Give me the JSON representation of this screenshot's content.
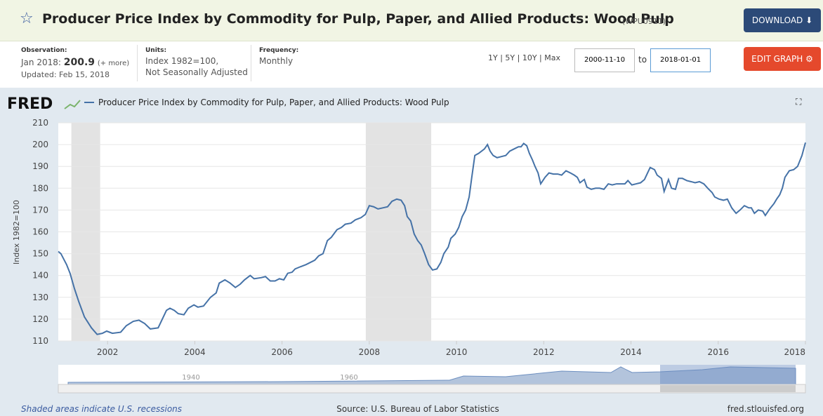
{
  "header": {
    "title": "Producer Price Index by Commodity for Pulp, Paper, and Allied Products: Wood Pulp",
    "code": "(WPU0911)",
    "download": "DOWNLOAD"
  },
  "info": {
    "observation_label": "Observation:",
    "observation": "Jan 2018:",
    "observation_value": "200.9",
    "more": "(+ more)",
    "updated": "Updated: Feb 15, 2018",
    "units_label": "Units:",
    "units": "Index 1982=100,",
    "units2": "Not Seasonally Adjusted",
    "frequency_label": "Frequency:",
    "frequency": "Monthly"
  },
  "controls": {
    "ranges": "1Y | 5Y | 10Y | Max",
    "start": "2000-11-10",
    "to": "to",
    "end": "2018-01-01",
    "edit": "EDIT GRAPH"
  },
  "chart_data": {
    "type": "line",
    "logo": "FRED",
    "ylabel": "Index 1982=100",
    "grid": true,
    "xlim": [
      2000.87,
      2018.0
    ],
    "xticks": [
      2002,
      2004,
      2006,
      2008,
      2010,
      2012,
      2014,
      2016,
      2018
    ],
    "ylim": [
      110,
      210
    ],
    "yticks": [
      110,
      120,
      130,
      140,
      150,
      160,
      170,
      180,
      190,
      200,
      210
    ],
    "recessions": [
      [
        2001.17,
        2001.83
      ],
      [
        2007.92,
        2009.42
      ]
    ],
    "x": [
      2000.87,
      2000.93,
      2001.06,
      2001.14,
      2001.24,
      2001.34,
      2001.47,
      2001.63,
      2001.76,
      2001.88,
      2001.98,
      2002.11,
      2002.3,
      2002.43,
      2002.59,
      2002.72,
      2002.85,
      2002.98,
      2003.16,
      2003.35,
      2003.43,
      2003.53,
      2003.62,
      2003.75,
      2003.85,
      2003.98,
      2004.07,
      2004.2,
      2004.36,
      2004.49,
      2004.56,
      2004.69,
      2004.81,
      2004.93,
      2005.04,
      2005.14,
      2005.27,
      2005.36,
      2005.52,
      2005.62,
      2005.73,
      2005.84,
      2005.94,
      2006.04,
      2006.13,
      2006.23,
      2006.3,
      2006.42,
      2006.55,
      2006.75,
      2006.84,
      2006.94,
      2007.04,
      2007.13,
      2007.26,
      2007.36,
      2007.45,
      2007.58,
      2007.68,
      2007.81,
      2007.91,
      2008.0,
      2008.1,
      2008.2,
      2008.31,
      2008.42,
      2008.52,
      2008.63,
      2008.73,
      2008.81,
      2008.87,
      2008.95,
      2009.03,
      2009.11,
      2009.19,
      2009.27,
      2009.36,
      2009.45,
      2009.55,
      2009.64,
      2009.71,
      2009.81,
      2009.87,
      2009.97,
      2010.05,
      2010.13,
      2010.21,
      2010.29,
      2010.35,
      2010.42,
      2010.51,
      2010.64,
      2010.71,
      2010.77,
      2010.84,
      2010.93,
      2011.03,
      2011.13,
      2011.22,
      2011.32,
      2011.42,
      2011.48,
      2011.54,
      2011.61,
      2011.67,
      2011.74,
      2011.8,
      2011.87,
      2011.93,
      2012.03,
      2012.12,
      2012.22,
      2012.32,
      2012.41,
      2012.51,
      2012.61,
      2012.7,
      2012.77,
      2012.83,
      2012.93,
      2012.99,
      2013.09,
      2013.19,
      2013.28,
      2013.38,
      2013.48,
      2013.57,
      2013.67,
      2013.77,
      2013.86,
      2013.93,
      2014.02,
      2014.12,
      2014.22,
      2014.31,
      2014.38,
      2014.44,
      2014.54,
      2014.6,
      2014.7,
      2014.76,
      2014.86,
      2014.93,
      2015.02,
      2015.09,
      2015.18,
      2015.28,
      2015.38,
      2015.47,
      2015.57,
      2015.67,
      2015.76,
      2015.86,
      2015.92,
      2016.02,
      2016.12,
      2016.21,
      2016.31,
      2016.41,
      2016.5,
      2016.6,
      2016.7,
      2016.76,
      2016.83,
      2016.92,
      2017.02,
      2017.08,
      2017.18,
      2017.28,
      2017.34,
      2017.41,
      2017.47,
      2017.53,
      2017.63,
      2017.73,
      2017.82,
      2017.92,
      2018.0
    ],
    "series": [
      {
        "name": "Producer Price Index by Commodity for Pulp, Paper, and Allied Products: Wood Pulp",
        "color": "#4572a7",
        "values": [
          151,
          150,
          145,
          141,
          134,
          128,
          121,
          116,
          113,
          113.5,
          114.5,
          113.5,
          114,
          117,
          119,
          119.5,
          118,
          115.5,
          116,
          124,
          125,
          124,
          122.5,
          122,
          125,
          126.5,
          125.5,
          126,
          130,
          132,
          136.5,
          138,
          136.5,
          134.5,
          136,
          138,
          140,
          138.5,
          139,
          139.5,
          137.5,
          137.5,
          138.5,
          138,
          141,
          141.5,
          143,
          144,
          145,
          147,
          149,
          150,
          156,
          157.5,
          161,
          162,
          163.5,
          164,
          165.5,
          166.5,
          168,
          172,
          171.5,
          170.5,
          171,
          171.5,
          174,
          175,
          174.5,
          172,
          167,
          165,
          159,
          156,
          154,
          150,
          145,
          142.5,
          143,
          146,
          150,
          153,
          157,
          159,
          162,
          167,
          170,
          176,
          185,
          195,
          196,
          198,
          200,
          197,
          195,
          194,
          194.5,
          195,
          197,
          198,
          199,
          199,
          200.5,
          199.5,
          196,
          193,
          190,
          187,
          182,
          185,
          187,
          186.5,
          186.5,
          186,
          188,
          187,
          186,
          185,
          182.5,
          184,
          180.5,
          179.5,
          180,
          180,
          179.5,
          182,
          181.5,
          182,
          182,
          182,
          183.5,
          181.5,
          182,
          182.5,
          184,
          187,
          189.5,
          188.5,
          186,
          184.5,
          178.5,
          184,
          180,
          179.5,
          184.5,
          184.5,
          183.5,
          183,
          182.5,
          183,
          182,
          180,
          178,
          176,
          175,
          174.5,
          175,
          171,
          168.5,
          170,
          172,
          171,
          171,
          168.5,
          170,
          169.5,
          167.5,
          170.5,
          173,
          175,
          177,
          180,
          185,
          188,
          188.5,
          190,
          195,
          200.9
        ]
      }
    ],
    "navigator_labels": [
      "1940",
      "1960"
    ]
  },
  "footer": {
    "note": "Shaded areas indicate U.S. recessions",
    "source": "Source: U.S. Bureau of Labor Statistics",
    "site": "fred.stlouisfed.org"
  }
}
